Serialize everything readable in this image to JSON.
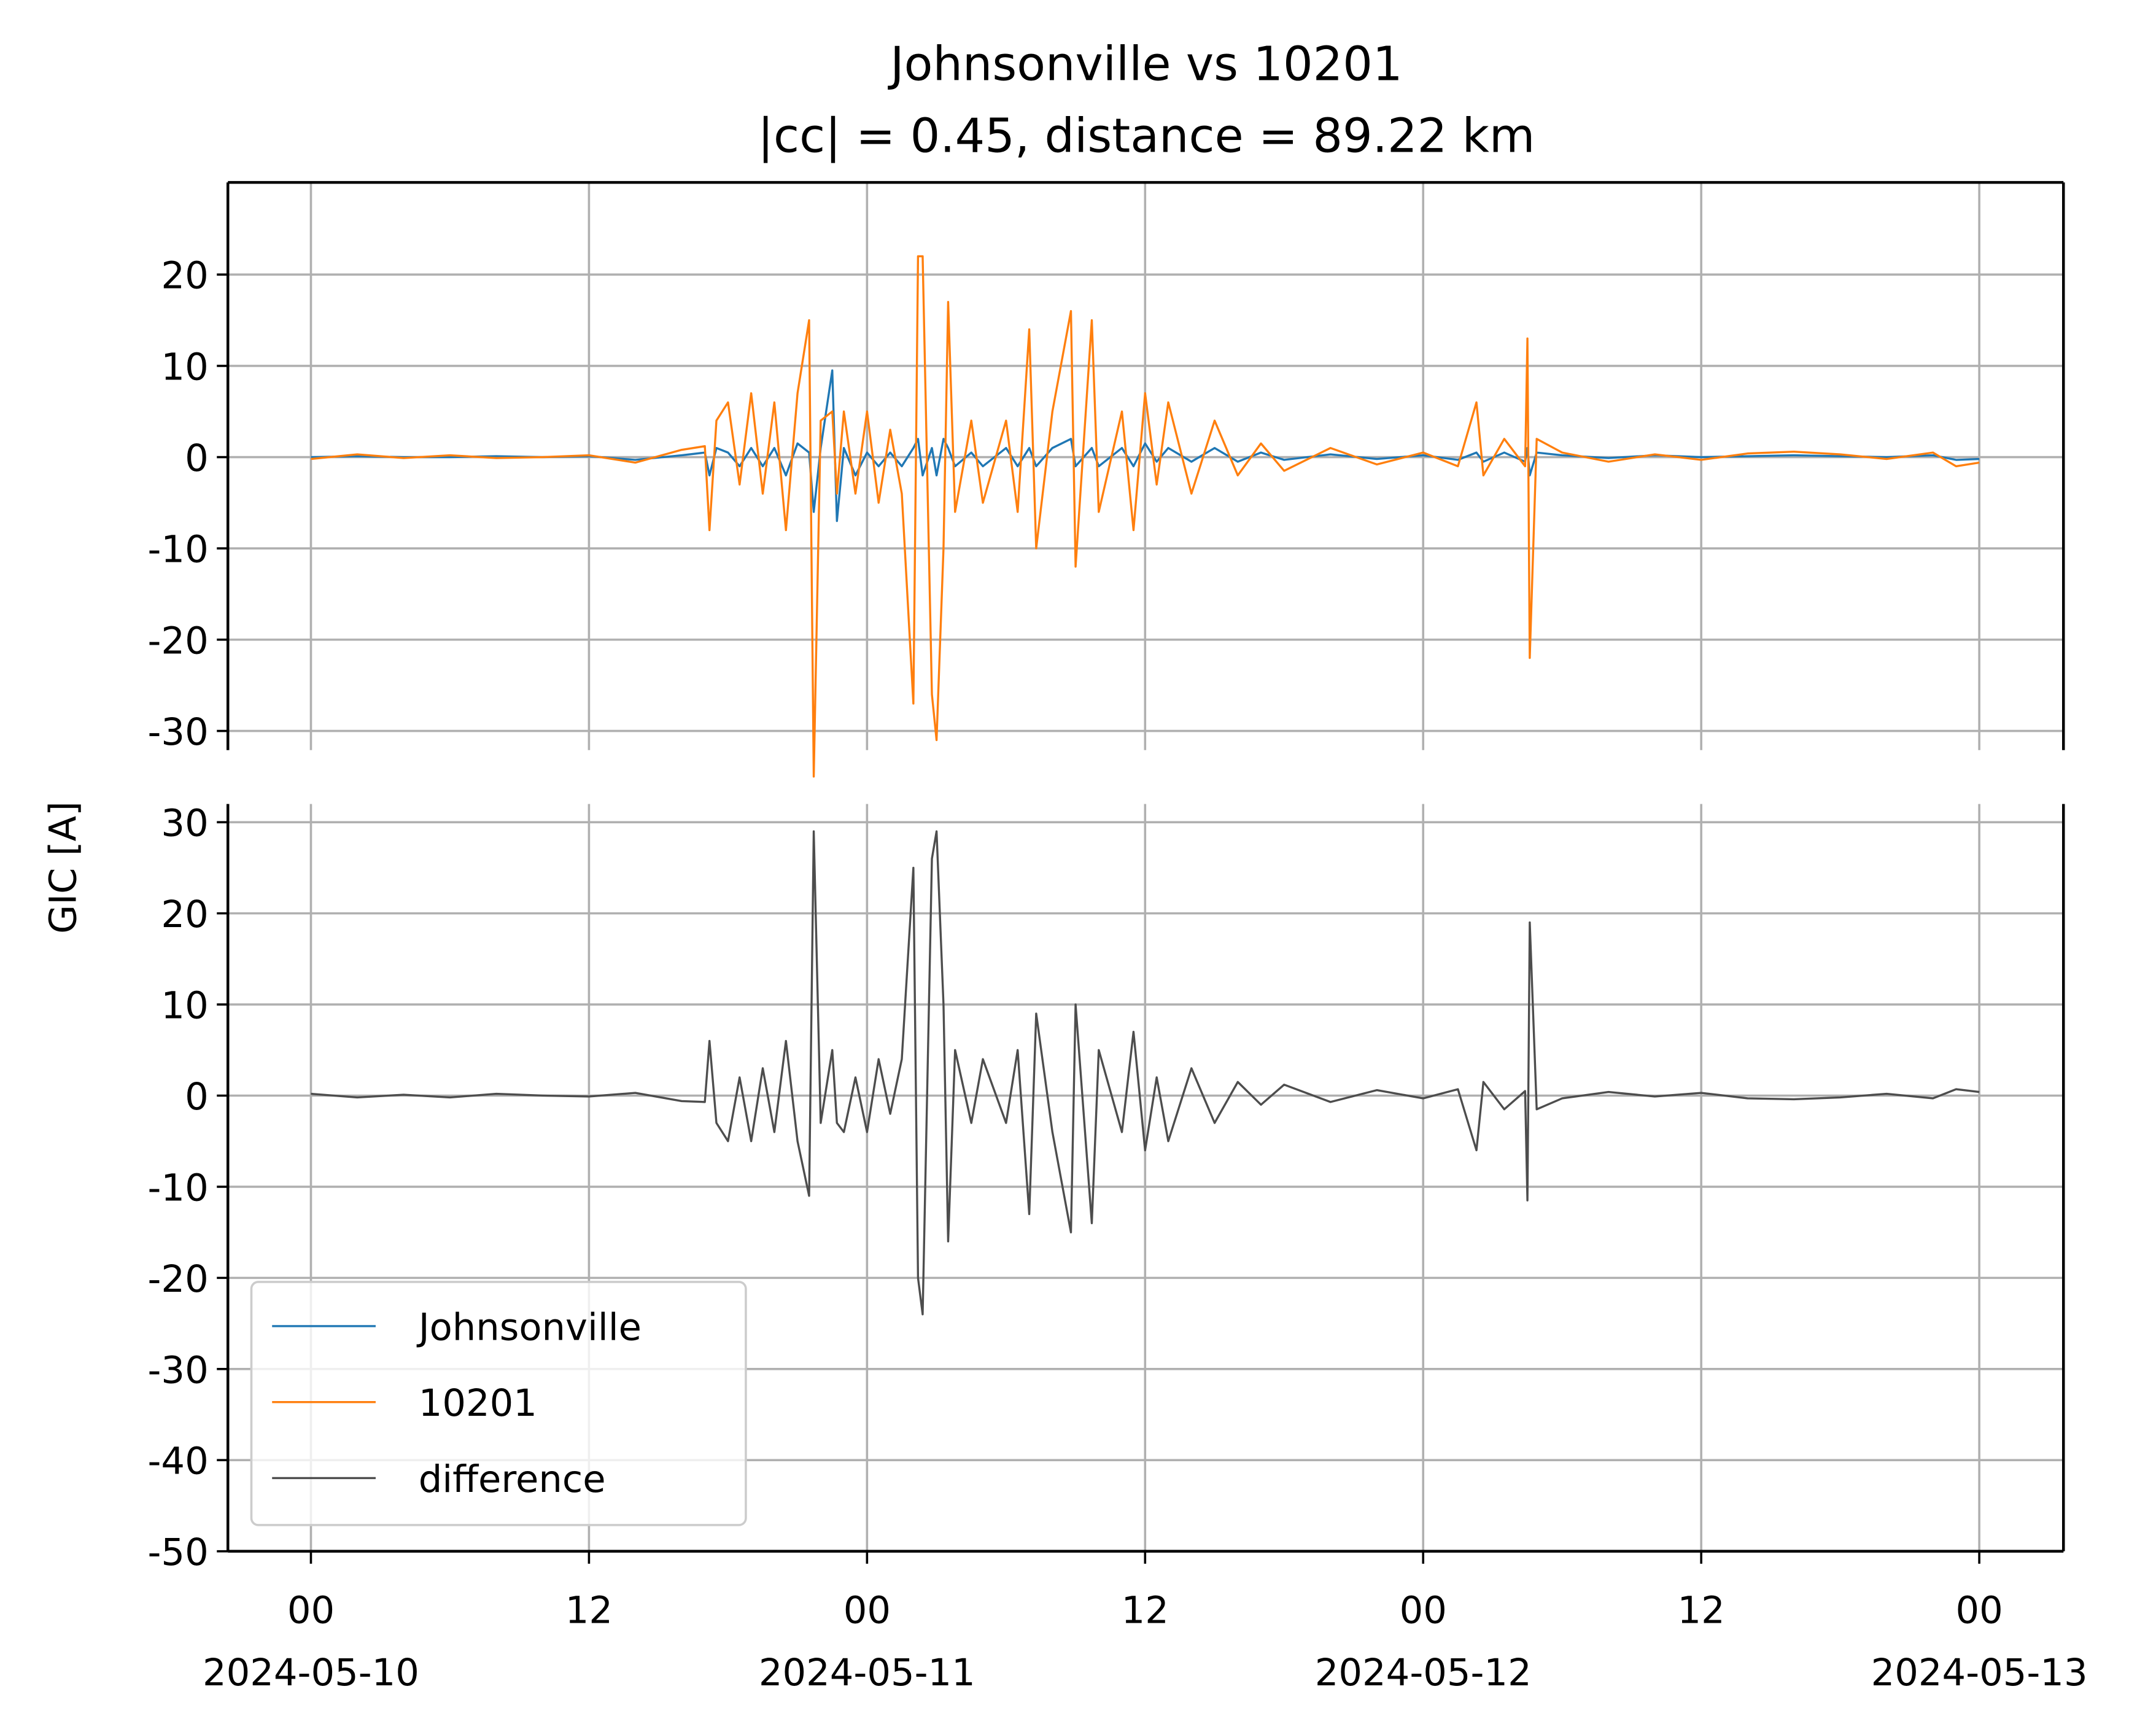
{
  "chart_data": [
    {
      "type": "line",
      "title": "Johnsonville vs 10201",
      "subtitle": "|cc| = 0.45, distance = 89.22 km",
      "x": [
        "2024-05-10 00:00",
        "2024-05-10 02:00",
        "2024-05-10 04:00",
        "2024-05-10 06:00",
        "2024-05-10 08:00",
        "2024-05-10 10:00",
        "2024-05-10 12:00",
        "2024-05-10 14:00",
        "2024-05-10 16:00",
        "2024-05-10 17:00",
        "2024-05-10 17:12",
        "2024-05-10 17:30",
        "2024-05-10 18:00",
        "2024-05-10 18:30",
        "2024-05-10 19:00",
        "2024-05-10 19:30",
        "2024-05-10 20:00",
        "2024-05-10 20:30",
        "2024-05-10 21:00",
        "2024-05-10 21:30",
        "2024-05-10 21:42",
        "2024-05-10 22:00",
        "2024-05-10 22:30",
        "2024-05-10 22:42",
        "2024-05-10 23:00",
        "2024-05-10 23:30",
        "2024-05-11 00:00",
        "2024-05-11 00:30",
        "2024-05-11 01:00",
        "2024-05-11 01:30",
        "2024-05-11 02:00",
        "2024-05-11 02:12",
        "2024-05-11 02:24",
        "2024-05-11 02:48",
        "2024-05-11 03:00",
        "2024-05-11 03:18",
        "2024-05-11 03:30",
        "2024-05-11 03:48",
        "2024-05-11 04:30",
        "2024-05-11 05:00",
        "2024-05-11 06:00",
        "2024-05-11 06:30",
        "2024-05-11 07:00",
        "2024-05-11 07:18",
        "2024-05-11 08:00",
        "2024-05-11 08:48",
        "2024-05-11 09:00",
        "2024-05-11 09:42",
        "2024-05-11 10:00",
        "2024-05-11 11:00",
        "2024-05-11 11:30",
        "2024-05-11 12:00",
        "2024-05-11 12:30",
        "2024-05-11 13:00",
        "2024-05-11 14:00",
        "2024-05-11 15:00",
        "2024-05-11 16:00",
        "2024-05-11 17:00",
        "2024-05-11 18:00",
        "2024-05-11 20:00",
        "2024-05-11 22:00",
        "2024-05-12 00:00",
        "2024-05-12 01:30",
        "2024-05-12 02:18",
        "2024-05-12 02:36",
        "2024-05-12 03:30",
        "2024-05-12 04:24",
        "2024-05-12 04:30",
        "2024-05-12 04:36",
        "2024-05-12 04:54",
        "2024-05-12 06:00",
        "2024-05-12 08:00",
        "2024-05-12 10:00",
        "2024-05-12 12:00",
        "2024-05-12 14:00",
        "2024-05-12 16:00",
        "2024-05-12 18:00",
        "2024-05-12 20:00",
        "2024-05-12 22:00",
        "2024-05-12 23:00",
        "2024-05-13 00:00"
      ],
      "series": [
        {
          "name": "Johnsonville",
          "color": "#1f77b4",
          "values": [
            0,
            0.1,
            0,
            0,
            0.1,
            0,
            0.1,
            -0.3,
            0.2,
            0.5,
            -2,
            1,
            0.5,
            -1,
            1,
            -1,
            1,
            -2,
            1.5,
            0.5,
            -6,
            1,
            9.5,
            -7,
            1,
            -2,
            0.5,
            -1,
            0.5,
            -1,
            1,
            2,
            -2,
            1,
            -2,
            2,
            1,
            -1,
            0.5,
            -1,
            1,
            -1,
            1,
            -1,
            1,
            2,
            -1,
            1,
            -1,
            1,
            -1,
            1.5,
            -0.5,
            1,
            -0.5,
            1,
            -0.5,
            0.5,
            -0.3,
            0.3,
            -0.2,
            0.2,
            -0.3,
            0.5,
            -0.5,
            0.5,
            -0.5,
            1,
            -2,
            0.5,
            0.2,
            -0.1,
            0.2,
            0,
            0.1,
            0.2,
            0.1,
            0,
            0.2,
            -0.3,
            -0.2
          ]
        },
        {
          "name": "10201",
          "color": "#ff7f0e",
          "values": [
            -0.2,
            0.3,
            -0.1,
            0.2,
            -0.1,
            0,
            0.2,
            -0.6,
            0.8,
            1.2,
            -8,
            4,
            6,
            -3,
            7,
            -4,
            6,
            -8,
            7,
            15,
            -35,
            4,
            5,
            -4,
            5,
            -4,
            5,
            -5,
            3,
            -4,
            -27,
            22,
            22,
            -26,
            -31,
            -10,
            17,
            -6,
            4,
            -5,
            4,
            -6,
            14,
            -10,
            5,
            16,
            -12,
            15,
            -6,
            5,
            -8,
            7,
            -3,
            6,
            -4,
            4,
            -2,
            1.5,
            -1.5,
            1,
            -0.8,
            0.5,
            -1,
            6,
            -2,
            2,
            -1,
            13,
            -22,
            2,
            0.5,
            -0.5,
            0.3,
            -0.3,
            0.4,
            0.6,
            0.3,
            -0.2,
            0.5,
            -1,
            -0.6
          ]
        }
      ],
      "xlim": [
        "2024-05-09 20:25",
        "2024-05-13 03:38"
      ],
      "ylim": [
        -32.1,
        30.1
      ],
      "yticks": [
        -30,
        -20,
        -10,
        0,
        10,
        20
      ],
      "grid": true
    },
    {
      "type": "line",
      "ylabel": "GIC [A]",
      "x": [
        "2024-05-10 00:00",
        "2024-05-10 02:00",
        "2024-05-10 04:00",
        "2024-05-10 06:00",
        "2024-05-10 08:00",
        "2024-05-10 10:00",
        "2024-05-10 12:00",
        "2024-05-10 14:00",
        "2024-05-10 16:00",
        "2024-05-10 17:00",
        "2024-05-10 17:12",
        "2024-05-10 17:30",
        "2024-05-10 18:00",
        "2024-05-10 18:30",
        "2024-05-10 19:00",
        "2024-05-10 19:30",
        "2024-05-10 20:00",
        "2024-05-10 20:30",
        "2024-05-10 21:00",
        "2024-05-10 21:30",
        "2024-05-10 21:42",
        "2024-05-10 22:00",
        "2024-05-10 22:30",
        "2024-05-10 22:42",
        "2024-05-10 23:00",
        "2024-05-10 23:30",
        "2024-05-11 00:00",
        "2024-05-11 00:30",
        "2024-05-11 01:00",
        "2024-05-11 01:30",
        "2024-05-11 02:00",
        "2024-05-11 02:12",
        "2024-05-11 02:24",
        "2024-05-11 02:48",
        "2024-05-11 03:00",
        "2024-05-11 03:18",
        "2024-05-11 03:30",
        "2024-05-11 03:48",
        "2024-05-11 04:30",
        "2024-05-11 05:00",
        "2024-05-11 06:00",
        "2024-05-11 06:30",
        "2024-05-11 07:00",
        "2024-05-11 07:18",
        "2024-05-11 08:00",
        "2024-05-11 08:48",
        "2024-05-11 09:00",
        "2024-05-11 09:42",
        "2024-05-11 10:00",
        "2024-05-11 11:00",
        "2024-05-11 11:30",
        "2024-05-11 12:00",
        "2024-05-11 12:30",
        "2024-05-11 13:00",
        "2024-05-11 14:00",
        "2024-05-11 15:00",
        "2024-05-11 16:00",
        "2024-05-11 17:00",
        "2024-05-11 18:00",
        "2024-05-11 20:00",
        "2024-05-11 22:00",
        "2024-05-12 00:00",
        "2024-05-12 01:30",
        "2024-05-12 02:18",
        "2024-05-12 02:36",
        "2024-05-12 03:30",
        "2024-05-12 04:24",
        "2024-05-12 04:30",
        "2024-05-12 04:36",
        "2024-05-12 04:54",
        "2024-05-12 06:00",
        "2024-05-12 08:00",
        "2024-05-12 10:00",
        "2024-05-12 12:00",
        "2024-05-12 14:00",
        "2024-05-12 16:00",
        "2024-05-12 18:00",
        "2024-05-12 20:00",
        "2024-05-12 22:00",
        "2024-05-12 23:00",
        "2024-05-13 00:00"
      ],
      "series": [
        {
          "name": "difference",
          "color": "#4d4d4d",
          "values": [
            0.2,
            -0.2,
            0.1,
            -0.2,
            0.2,
            0,
            -0.1,
            0.3,
            -0.6,
            -0.7,
            6,
            -3,
            -5,
            2,
            -5,
            3,
            -4,
            6,
            -5,
            -11,
            29,
            -3,
            5,
            -3,
            -4,
            2,
            -4,
            4,
            -2,
            4,
            25,
            -20,
            -24,
            26,
            29,
            10,
            -16,
            5,
            -3,
            4,
            -3,
            5,
            -13,
            9,
            -4,
            -15,
            10,
            -14,
            5,
            -4,
            7,
            -6,
            2,
            -5,
            3,
            -3,
            1.5,
            -1,
            1.2,
            -0.7,
            0.6,
            -0.3,
            0.7,
            -6,
            1.5,
            -1.5,
            0.5,
            -11.5,
            19,
            -1.5,
            -0.3,
            0.4,
            -0.1,
            0.3,
            -0.3,
            -0.4,
            -0.2,
            0.2,
            -0.3,
            0.7,
            0.4
          ]
        }
      ],
      "xlim": [
        "2024-05-09 20:25",
        "2024-05-13 03:38"
      ],
      "xticks": [
        {
          "value": "2024-05-10 00:00",
          "label": "00\n2024-05-10"
        },
        {
          "value": "2024-05-10 12:00",
          "label": "12"
        },
        {
          "value": "2024-05-11 00:00",
          "label": "00\n2024-05-11"
        },
        {
          "value": "2024-05-11 12:00",
          "label": "12"
        },
        {
          "value": "2024-05-12 00:00",
          "label": "00\n2024-05-12"
        },
        {
          "value": "2024-05-12 12:00",
          "label": "12"
        },
        {
          "value": "2024-05-13 00:00",
          "label": "00\n2024-05-13"
        }
      ],
      "ylim": [
        -50,
        32
      ],
      "yticks": [
        -50,
        -40,
        -30,
        -20,
        -10,
        0,
        10,
        20,
        30
      ],
      "grid": true,
      "legend": "lower left"
    }
  ]
}
